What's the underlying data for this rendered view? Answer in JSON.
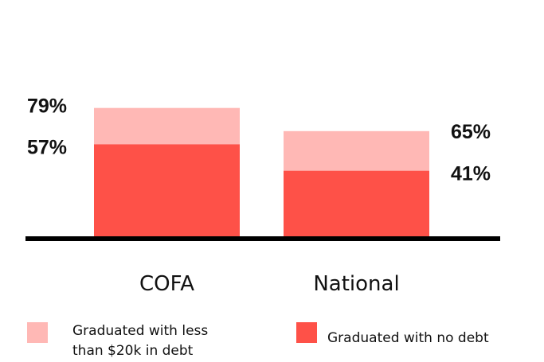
{
  "chart_data": {
    "type": "bar",
    "stacked": false,
    "overlaid": true,
    "categories": [
      "COFA",
      "National"
    ],
    "series": [
      {
        "name": "Graduated with less than $20k in debt",
        "values": [
          79,
          65
        ],
        "labels": [
          "79%",
          "65%"
        ],
        "color": "#FFB8B5"
      },
      {
        "name": "Graduated with no debt",
        "values": [
          57,
          41
        ],
        "labels": [
          "57%",
          "41%"
        ],
        "color": "#FE5148"
      }
    ],
    "ylim": [
      0,
      100
    ],
    "grid": false,
    "legend": "bottom",
    "title": "",
    "xlabel": "",
    "ylabel": "",
    "axis_color": "#000000"
  },
  "legend": {
    "items": [
      {
        "lines": [
          "Graduated with less",
          "than $20k in debt"
        ],
        "color": "#FFB8B5",
        "icon": "legend-swatch"
      },
      {
        "lines": [
          "Graduated with no debt"
        ],
        "color": "#FE5148",
        "icon": "legend-swatch"
      }
    ]
  }
}
